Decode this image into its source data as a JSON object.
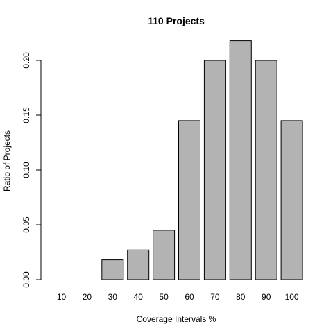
{
  "chart_data": {
    "type": "bar",
    "title": "110 Projects",
    "xlabel": "Coverage Intervals %",
    "ylabel": "Ratio of Projects",
    "categories": [
      "10",
      "20",
      "30",
      "40",
      "50",
      "60",
      "70",
      "80",
      "90",
      "100"
    ],
    "values": [
      0.0,
      0.0,
      0.018,
      0.027,
      0.045,
      0.145,
      0.2,
      0.218,
      0.2,
      0.145
    ],
    "ylim": [
      0,
      0.2
    ],
    "yticks": [
      "0.00",
      "0.05",
      "0.10",
      "0.15",
      "0.20"
    ],
    "grid": false,
    "legend": "none",
    "bar_color": "#b3b3b3",
    "bar_edge_color": "#000000"
  }
}
